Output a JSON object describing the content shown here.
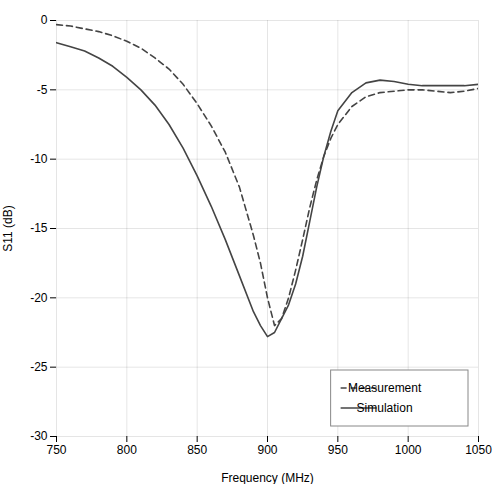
{
  "chart_data": {
    "type": "line",
    "xlabel": "Frequency (MHz)",
    "ylabel": "S11 (dB)",
    "xlim": [
      750,
      1050
    ],
    "ylim": [
      -30,
      0
    ],
    "xticks": [
      750,
      800,
      850,
      900,
      950,
      1000,
      1050
    ],
    "yticks": [
      0,
      -5,
      -10,
      -15,
      -20,
      -25,
      -30
    ],
    "grid": true,
    "legend": "lower right",
    "x": [
      750,
      760,
      770,
      780,
      790,
      800,
      810,
      820,
      830,
      840,
      850,
      860,
      870,
      880,
      890,
      895,
      900,
      905,
      910,
      915,
      920,
      925,
      930,
      935,
      940,
      945,
      950,
      960,
      970,
      980,
      990,
      1000,
      1010,
      1020,
      1030,
      1040,
      1050
    ],
    "series": [
      {
        "name": "Measurement",
        "color": "#444444",
        "line_style": "dashed",
        "values": [
          -0.3,
          -0.4,
          -0.6,
          -0.8,
          -1.1,
          -1.5,
          -2.0,
          -2.7,
          -3.5,
          -4.6,
          -6.0,
          -7.6,
          -9.5,
          -12.0,
          -15.5,
          -17.5,
          -20.0,
          -22.0,
          -21.5,
          -20.0,
          -18.0,
          -15.8,
          -13.5,
          -11.5,
          -9.8,
          -8.5,
          -7.5,
          -6.2,
          -5.5,
          -5.2,
          -5.1,
          -5.0,
          -5.0,
          -5.1,
          -5.2,
          -5.1,
          -4.9
        ]
      },
      {
        "name": "Simulation",
        "color": "#444444",
        "line_style": "solid",
        "values": [
          -1.6,
          -1.9,
          -2.2,
          -2.7,
          -3.3,
          -4.1,
          -5.0,
          -6.1,
          -7.5,
          -9.2,
          -11.2,
          -13.4,
          -15.8,
          -18.4,
          -21.0,
          -22.0,
          -22.8,
          -22.5,
          -21.5,
          -20.5,
          -19.0,
          -17.0,
          -14.5,
          -12.0,
          -9.8,
          -8.0,
          -6.5,
          -5.2,
          -4.5,
          -4.3,
          -4.4,
          -4.6,
          -4.7,
          -4.7,
          -4.7,
          -4.7,
          -4.6
        ]
      }
    ]
  }
}
